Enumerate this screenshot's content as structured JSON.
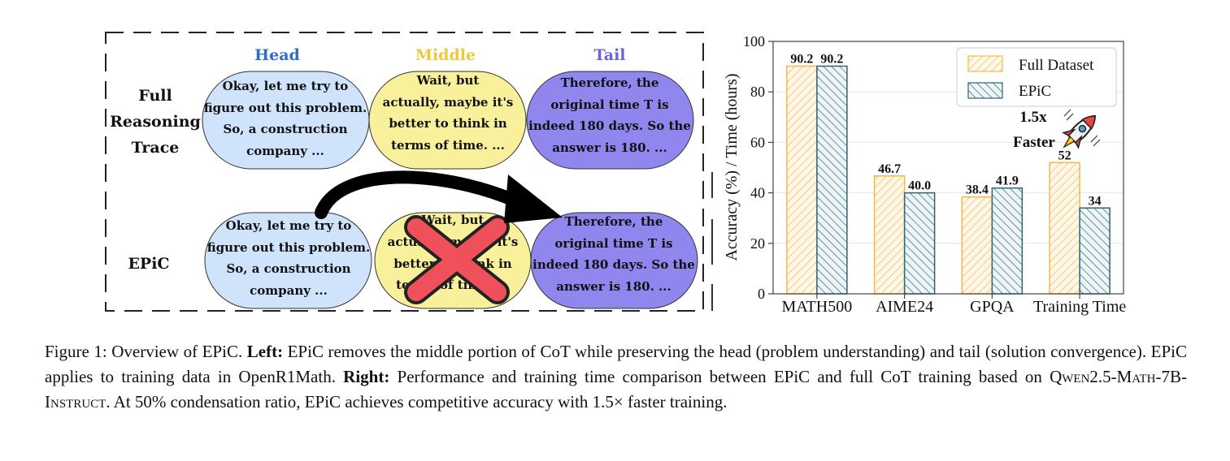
{
  "diagram": {
    "columns": {
      "head": {
        "label": "Head",
        "color": "#2f6fbd"
      },
      "middle": {
        "label": "Middle",
        "color": "#f0c93a"
      },
      "tail": {
        "label": "Tail",
        "color": "#6a63d9"
      }
    },
    "rows": {
      "full_label": [
        "Full",
        "Reasoning",
        "Trace"
      ],
      "epic_label": "EPiC"
    },
    "bubbles": {
      "head_lines": [
        "Okay, let me try to",
        "figure out this problem.",
        "So, a construction",
        "company ..."
      ],
      "middle_lines": [
        "Wait, but",
        "actually, maybe it's",
        "better to think in",
        "terms of time.  ..."
      ],
      "middle_epic_lines": [
        "Wait, but",
        "actually, maybe it's",
        "better to think in",
        "terms of time.  ..."
      ],
      "tail_lines": [
        "Therefore, the",
        "original time T is",
        "indeed 180 days. So the",
        "answer is 180. ..."
      ]
    },
    "colors": {
      "head_fill": "#cfe3fb",
      "middle_fill": "#f8f09a",
      "tail_fill": "#8f86ee",
      "cross": "#f0505a"
    }
  },
  "chart_data": {
    "type": "bar",
    "categories": [
      "MATH500",
      "AIME24",
      "GPQA",
      "Training Time"
    ],
    "series": [
      {
        "name": "Full Dataset",
        "values": [
          90.2,
          46.7,
          38.4,
          52
        ],
        "labels": [
          "90.2",
          "46.7",
          "38.4",
          "52"
        ],
        "color": "#f5b84a"
      },
      {
        "name": "EPiC",
        "values": [
          90.2,
          40.0,
          41.9,
          34
        ],
        "labels": [
          "90.2",
          "40.0",
          "41.9",
          "34"
        ],
        "color": "#2e6478"
      }
    ],
    "ylabel": "Accuracy (%) / Time (hours)",
    "ylim": [
      0,
      100
    ],
    "yticks": [
      "0",
      "20",
      "40",
      "60",
      "80",
      "100"
    ],
    "grid": true,
    "legend_position": "top-right",
    "annotation": {
      "speedup": "1.5x",
      "faster": "Faster",
      "icon": "rocket-icon"
    }
  },
  "caption": {
    "figure_label": "Figure 1:",
    "intro": " Overview of EPiC. ",
    "left_label": "Left:",
    "left_text": " EPiC removes the middle portion of CoT while preserving the head (problem understanding) and tail (solution convergence). EPiC applies to training data in OpenR1Math. ",
    "right_label": "Right:",
    "right_text": " Performance and training time comparison between EPiC and full CoT training based on ",
    "model_name": "Qwen2.5-Math-7B-Instruct",
    "end_text": ". At 50% condensation ratio, EPiC achieves competitive accuracy with 1.5× faster training."
  }
}
